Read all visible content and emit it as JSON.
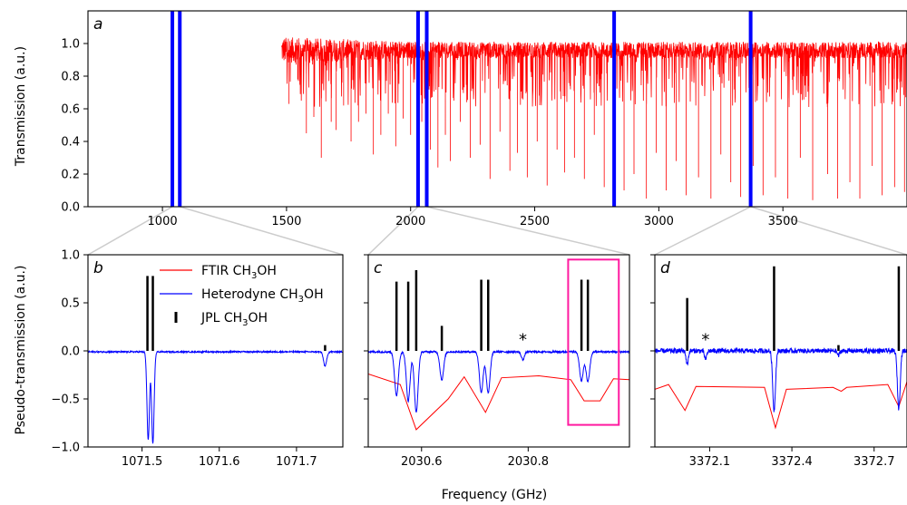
{
  "chart_data": [
    {
      "id": "a",
      "panel_label": "a",
      "type": "line",
      "ylabel": "Transmission (a.u.)",
      "xlim": [
        700,
        4000
      ],
      "ylim": [
        0.0,
        1.2
      ],
      "xticks": [
        1000,
        1500,
        2000,
        2500,
        3000,
        3500
      ],
      "yticks": [
        0.0,
        0.2,
        0.4,
        0.6,
        0.8,
        1.0
      ],
      "grid": false,
      "series": [
        {
          "color": "#ff0000",
          "x_range": [
            1480,
            4000
          ],
          "baseline": 0.96,
          "absorption_dips": [
            [
              1510,
              0.63
            ],
            [
              1545,
              0.78
            ],
            [
              1580,
              0.45
            ],
            [
              1610,
              0.55
            ],
            [
              1640,
              0.3
            ],
            [
              1680,
              0.52
            ],
            [
              1700,
              0.47
            ],
            [
              1730,
              0.62
            ],
            [
              1760,
              0.4
            ],
            [
              1790,
              0.52
            ],
            [
              1820,
              0.57
            ],
            [
              1850,
              0.32
            ],
            [
              1880,
              0.44
            ],
            [
              1910,
              0.57
            ],
            [
              1940,
              0.37
            ],
            [
              1970,
              0.54
            ],
            [
              2000,
              0.44
            ],
            [
              2025,
              0.22
            ],
            [
              2045,
              0.52
            ],
            [
              2080,
              0.35
            ],
            [
              2110,
              0.24
            ],
            [
              2140,
              0.44
            ],
            [
              2160,
              0.28
            ],
            [
              2200,
              0.52
            ],
            [
              2240,
              0.3
            ],
            [
              2280,
              0.38
            ],
            [
              2320,
              0.17
            ],
            [
              2360,
              0.46
            ],
            [
              2400,
              0.22
            ],
            [
              2430,
              0.33
            ],
            [
              2470,
              0.18
            ],
            [
              2510,
              0.4
            ],
            [
              2550,
              0.13
            ],
            [
              2590,
              0.35
            ],
            [
              2620,
              0.21
            ],
            [
              2660,
              0.3
            ],
            [
              2700,
              0.17
            ],
            [
              2740,
              0.44
            ],
            [
              2780,
              0.12
            ],
            [
              2820,
              0.27
            ],
            [
              2860,
              0.1
            ],
            [
              2900,
              0.2
            ],
            [
              2950,
              0.05
            ],
            [
              2990,
              0.33
            ],
            [
              3030,
              0.1
            ],
            [
              3070,
              0.28
            ],
            [
              3110,
              0.07
            ],
            [
              3160,
              0.18
            ],
            [
              3210,
              0.05
            ],
            [
              3250,
              0.32
            ],
            [
              3290,
              0.15
            ],
            [
              3330,
              0.06
            ],
            [
              3380,
              0.25
            ],
            [
              3420,
              0.07
            ],
            [
              3470,
              0.18
            ],
            [
              3520,
              0.05
            ],
            [
              3570,
              0.3
            ],
            [
              3620,
              0.04
            ],
            [
              3680,
              0.2
            ],
            [
              3720,
              0.05
            ],
            [
              3770,
              0.15
            ],
            [
              3810,
              0.05
            ],
            [
              3860,
              0.25
            ],
            [
              3900,
              0.07
            ],
            [
              3950,
              0.12
            ],
            [
              3990,
              0.09
            ]
          ]
        }
      ],
      "markers": {
        "color": "#0000ff",
        "x": [
          1040,
          1070,
          2030,
          2065,
          2820,
          3370
        ]
      }
    },
    {
      "id": "b",
      "panel_label": "b",
      "type": "line",
      "ylabel": "Pseudo-transmission (a.u.)",
      "xlim": [
        1071.43,
        1071.76
      ],
      "ylim": [
        -1.0,
        1.0
      ],
      "xticks": [
        1071.5,
        1071.6,
        1071.7
      ],
      "xtick_labels": [
        "1071.5",
        "1071.6",
        "1071.7"
      ],
      "yticks": [
        -1.0,
        -0.5,
        0.0,
        0.5,
        1.0
      ],
      "ytick_labels": [
        "−1.0",
        "−0.5",
        "0.0",
        "0.5",
        "1.0"
      ],
      "series": [
        {
          "name": "Heterodyne CH3OH",
          "color": "#0000ff",
          "baseline": -0.01,
          "dips": [
            [
              1071.508,
              -0.93,
              0.0016
            ],
            [
              1071.514,
              -0.97,
              0.0016
            ],
            [
              1071.737,
              -0.16,
              0.002
            ]
          ]
        }
      ],
      "jpl_lines": [
        [
          1071.507,
          0.78
        ],
        [
          1071.514,
          0.78
        ],
        [
          1071.737,
          0.06
        ]
      ],
      "annotations": []
    },
    {
      "id": "c",
      "panel_label": "c",
      "type": "line",
      "xlim": [
        2030.5,
        2030.99
      ],
      "ylim": [
        -1.0,
        1.0
      ],
      "xticks": [
        2030.6,
        2030.8
      ],
      "xtick_labels": [
        "2030.6",
        "2030.8"
      ],
      "yticks": [
        -1.0,
        -0.5,
        0.0,
        0.5,
        1.0
      ],
      "series": [
        {
          "name": "FTIR CH3OH",
          "color": "#ff0000",
          "kind": "polyline",
          "points": [
            [
              2030.5,
              -0.24
            ],
            [
              2030.56,
              -0.35
            ],
            [
              2030.59,
              -0.82
            ],
            [
              2030.65,
              -0.5
            ],
            [
              2030.68,
              -0.27
            ],
            [
              2030.72,
              -0.64
            ],
            [
              2030.75,
              -0.28
            ],
            [
              2030.82,
              -0.26
            ],
            [
              2030.85,
              -0.28
            ],
            [
              2030.88,
              -0.3
            ],
            [
              2030.905,
              -0.52
            ],
            [
              2030.935,
              -0.52
            ],
            [
              2030.96,
              -0.29
            ],
            [
              2030.99,
              -0.3
            ]
          ]
        },
        {
          "name": "Heterodyne CH3OH",
          "color": "#0000ff",
          "baseline": -0.01,
          "dips": [
            [
              2030.553,
              -0.47,
              0.0035
            ],
            [
              2030.575,
              -0.52,
              0.0035
            ],
            [
              2030.59,
              -0.64,
              0.0035
            ],
            [
              2030.638,
              -0.3,
              0.0035
            ],
            [
              2030.712,
              -0.43,
              0.0035
            ],
            [
              2030.725,
              -0.44,
              0.0035
            ],
            [
              2030.79,
              -0.09,
              0.003
            ],
            [
              2030.9,
              -0.31,
              0.0035
            ],
            [
              2030.912,
              -0.32,
              0.0035
            ]
          ]
        }
      ],
      "jpl_lines": [
        [
          2030.553,
          0.72
        ],
        [
          2030.575,
          0.72
        ],
        [
          2030.59,
          0.84
        ],
        [
          2030.638,
          0.26
        ],
        [
          2030.712,
          0.74
        ],
        [
          2030.725,
          0.74
        ],
        [
          2030.9,
          0.74
        ],
        [
          2030.912,
          0.74
        ]
      ],
      "annotations": [
        {
          "text": "*",
          "x": 2030.79,
          "y": 0.1
        }
      ],
      "highlight_box": {
        "x": [
          2030.875,
          2030.97
        ],
        "y": [
          -0.77,
          0.95
        ],
        "color": "#ff1aa0"
      }
    },
    {
      "id": "d",
      "panel_label": "d",
      "type": "line",
      "xlim": [
        3371.9,
        3372.82
      ],
      "ylim": [
        -1.0,
        1.0
      ],
      "xticks": [
        3372.1,
        3372.4,
        3372.7
      ],
      "xtick_labels": [
        "3372.1",
        "3372.4",
        "3372.7"
      ],
      "yticks": [
        -1.0,
        -0.5,
        0.0,
        0.5,
        1.0
      ],
      "series": [
        {
          "name": "FTIR CH3OH",
          "color": "#ff0000",
          "kind": "polyline",
          "points": [
            [
              3371.9,
              -0.4
            ],
            [
              3371.95,
              -0.35
            ],
            [
              3372.01,
              -0.62
            ],
            [
              3372.05,
              -0.37
            ],
            [
              3372.3,
              -0.38
            ],
            [
              3372.34,
              -0.8
            ],
            [
              3372.38,
              -0.4
            ],
            [
              3372.55,
              -0.38
            ],
            [
              3372.58,
              -0.42
            ],
            [
              3372.6,
              -0.38
            ],
            [
              3372.75,
              -0.35
            ],
            [
              3372.79,
              -0.58
            ],
            [
              3372.82,
              -0.32
            ]
          ]
        },
        {
          "name": "Heterodyne CH3OH",
          "color": "#0000ff",
          "baseline": -0.0,
          "dips": [
            [
              3372.018,
              -0.14,
              0.004
            ],
            [
              3372.085,
              -0.09,
              0.004
            ],
            [
              3372.335,
              -0.62,
              0.005
            ],
            [
              3372.57,
              -0.05,
              0.004
            ],
            [
              3372.79,
              -0.6,
              0.005
            ]
          ]
        }
      ],
      "jpl_lines": [
        [
          3372.018,
          0.55
        ],
        [
          3372.335,
          0.88
        ],
        [
          3372.57,
          0.06
        ],
        [
          3372.79,
          0.88
        ]
      ],
      "annotations": [
        {
          "text": "*",
          "x": 3372.085,
          "y": 0.1
        }
      ]
    }
  ],
  "legend": {
    "position": "upper-right of panel b",
    "entries": [
      {
        "series": "FTIR CH3OH",
        "prefix": "FTIR CH",
        "sub": "3",
        "suffix": "OH",
        "color": "#ff0000",
        "style": "line"
      },
      {
        "series": "Heterodyne CH3OH",
        "prefix": "Heterodyne CH",
        "sub": "3",
        "suffix": "OH",
        "color": "#0000ff",
        "style": "line"
      },
      {
        "series": "JPL CH3OH",
        "prefix": "JPL CH",
        "sub": "3",
        "suffix": "OH",
        "color": "#000000",
        "style": "stick"
      }
    ]
  },
  "xlabel": "Frequency (GHz)"
}
